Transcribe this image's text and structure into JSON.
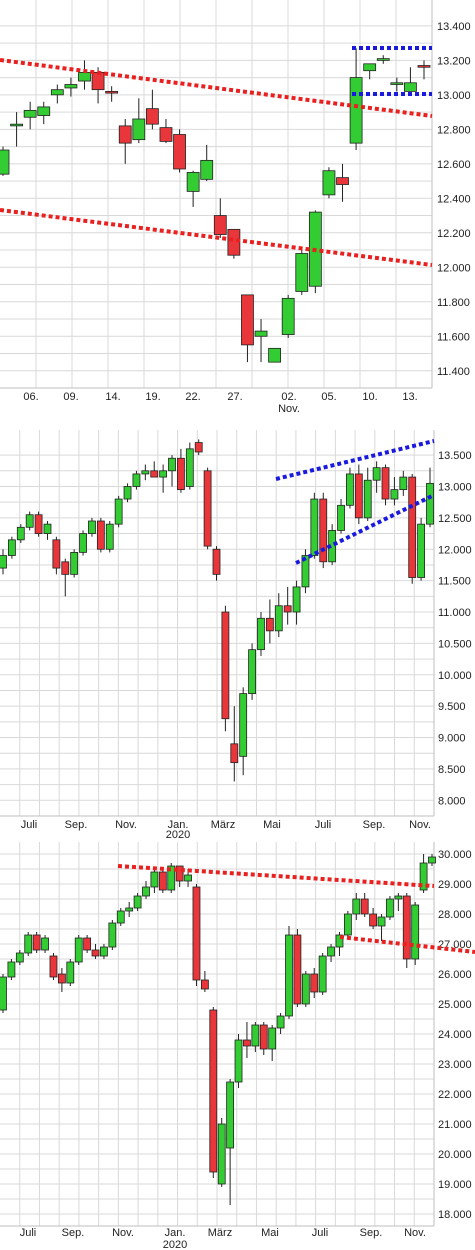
{
  "colors": {
    "up": "#33cc33",
    "down": "#e8363a",
    "grid": "#d9d9d9",
    "trend_red": "#e8201f",
    "trend_blue": "#1a1adf",
    "text": "#222222"
  },
  "chart_data": [
    {
      "type": "candlestick",
      "title": "",
      "ylim": [
        11300,
        13550
      ],
      "y_ticks": [
        "11.400",
        "11.600",
        "11.800",
        "12.000",
        "12.200",
        "12.400",
        "12.600",
        "12.800",
        "13.000",
        "13.200",
        "13.400"
      ],
      "y_tick_values": [
        11400,
        11600,
        11800,
        12000,
        12200,
        12400,
        12600,
        12800,
        13000,
        13200,
        13400
      ],
      "x_ticks": [
        "06.",
        "09.",
        "14.",
        "19.",
        "22.",
        "27.",
        "02.",
        "05.",
        "10.",
        "13."
      ],
      "x_sublabel": "Nov.",
      "candles": [
        {
          "o": 12540,
          "h": 12700,
          "l": 12530,
          "c": 12680
        },
        {
          "o": 12820,
          "h": 12900,
          "l": 12700,
          "c": 12830
        },
        {
          "o": 12870,
          "h": 12960,
          "l": 12800,
          "c": 12910
        },
        {
          "o": 12880,
          "h": 12960,
          "l": 12830,
          "c": 12930
        },
        {
          "o": 13000,
          "h": 13060,
          "l": 12950,
          "c": 13030
        },
        {
          "o": 13040,
          "h": 13100,
          "l": 12990,
          "c": 13060
        },
        {
          "o": 13080,
          "h": 13200,
          "l": 13030,
          "c": 13130
        },
        {
          "o": 13130,
          "h": 13160,
          "l": 12950,
          "c": 13030
        },
        {
          "o": 13020,
          "h": 13050,
          "l": 12960,
          "c": 13010
        },
        {
          "o": 12820,
          "h": 12860,
          "l": 12600,
          "c": 12720
        },
        {
          "o": 12740,
          "h": 12980,
          "l": 12720,
          "c": 12860
        },
        {
          "o": 12920,
          "h": 13030,
          "l": 12800,
          "c": 12830
        },
        {
          "o": 12810,
          "h": 12860,
          "l": 12720,
          "c": 12730
        },
        {
          "o": 12770,
          "h": 12800,
          "l": 12550,
          "c": 12570
        },
        {
          "o": 12440,
          "h": 12560,
          "l": 12350,
          "c": 12550
        },
        {
          "o": 12510,
          "h": 12710,
          "l": 12500,
          "c": 12620
        },
        {
          "o": 12300,
          "h": 12400,
          "l": 12170,
          "c": 12190
        },
        {
          "o": 12220,
          "h": 12220,
          "l": 12050,
          "c": 12070
        },
        {
          "o": 11840,
          "h": 11840,
          "l": 11450,
          "c": 11550
        },
        {
          "o": 11600,
          "h": 11700,
          "l": 11450,
          "c": 11630
        },
        {
          "o": 11450,
          "h": 11530,
          "l": 11450,
          "c": 11530
        },
        {
          "o": 11610,
          "h": 11840,
          "l": 11590,
          "c": 11820
        },
        {
          "o": 11860,
          "h": 12100,
          "l": 11840,
          "c": 12080
        },
        {
          "o": 11890,
          "h": 12330,
          "l": 11850,
          "c": 12320
        },
        {
          "o": 12420,
          "h": 12580,
          "l": 12400,
          "c": 12560
        },
        {
          "o": 12520,
          "h": 12600,
          "l": 12380,
          "c": 12480
        },
        {
          "o": 12720,
          "h": 13270,
          "l": 12680,
          "c": 13100
        },
        {
          "o": 13140,
          "h": 13180,
          "l": 13090,
          "c": 13180
        },
        {
          "o": 13200,
          "h": 13230,
          "l": 13180,
          "c": 13210
        },
        {
          "o": 13060,
          "h": 13100,
          "l": 13020,
          "c": 13070
        },
        {
          "o": 13020,
          "h": 13160,
          "l": 13020,
          "c": 13070
        },
        {
          "o": 13170,
          "h": 13200,
          "l": 13090,
          "c": 13160
        }
      ]
    },
    {
      "type": "candlestick",
      "title": "",
      "ylim": [
        7750,
        13900
      ],
      "y_ticks": [
        "8.000",
        "8.500",
        "9.000",
        "9.500",
        "10.000",
        "10.500",
        "11.000",
        "11.500",
        "12.000",
        "12.500",
        "13.000",
        "13.500"
      ],
      "y_tick_values": [
        8000,
        8500,
        9000,
        9500,
        10000,
        10500,
        11000,
        11500,
        12000,
        12500,
        13000,
        13500
      ],
      "x_ticks": [
        "Juli",
        "Sep.",
        "Nov.",
        "Jan.",
        "März",
        "Mai",
        "Juli",
        "Sep.",
        "Nov."
      ],
      "x_sublabel": "2020",
      "candles": [
        {
          "o": 11700,
          "h": 12000,
          "l": 11600,
          "c": 11900
        },
        {
          "o": 11900,
          "h": 12200,
          "l": 11850,
          "c": 12150
        },
        {
          "o": 12150,
          "h": 12400,
          "l": 12100,
          "c": 12350
        },
        {
          "o": 12350,
          "h": 12600,
          "l": 12300,
          "c": 12550
        },
        {
          "o": 12550,
          "h": 12600,
          "l": 12200,
          "c": 12250
        },
        {
          "o": 12250,
          "h": 12450,
          "l": 12150,
          "c": 12400
        },
        {
          "o": 12150,
          "h": 12200,
          "l": 11600,
          "c": 11700
        },
        {
          "o": 11800,
          "h": 11850,
          "l": 11250,
          "c": 11600
        },
        {
          "o": 11600,
          "h": 12000,
          "l": 11550,
          "c": 11950
        },
        {
          "o": 11950,
          "h": 12300,
          "l": 11900,
          "c": 12250
        },
        {
          "o": 12250,
          "h": 12500,
          "l": 12200,
          "c": 12450
        },
        {
          "o": 12450,
          "h": 12500,
          "l": 11950,
          "c": 12000
        },
        {
          "o": 12000,
          "h": 12450,
          "l": 11950,
          "c": 12400
        },
        {
          "o": 12400,
          "h": 12850,
          "l": 12350,
          "c": 12800
        },
        {
          "o": 12800,
          "h": 13050,
          "l": 12750,
          "c": 13000
        },
        {
          "o": 13000,
          "h": 13250,
          "l": 12950,
          "c": 13200
        },
        {
          "o": 13200,
          "h": 13350,
          "l": 13100,
          "c": 13250
        },
        {
          "o": 13250,
          "h": 13400,
          "l": 13150,
          "c": 13150
        },
        {
          "o": 13150,
          "h": 13350,
          "l": 12900,
          "c": 13250
        },
        {
          "o": 13250,
          "h": 13500,
          "l": 13000,
          "c": 13450
        },
        {
          "o": 13450,
          "h": 13600,
          "l": 12900,
          "c": 12950
        },
        {
          "o": 13000,
          "h": 13700,
          "l": 12950,
          "c": 13600
        },
        {
          "o": 13700,
          "h": 13750,
          "l": 13500,
          "c": 13550
        },
        {
          "o": 13250,
          "h": 13300,
          "l": 12000,
          "c": 12050
        },
        {
          "o": 12000,
          "h": 12050,
          "l": 11500,
          "c": 11600
        },
        {
          "o": 11000,
          "h": 11100,
          "l": 9100,
          "c": 9300
        },
        {
          "o": 8900,
          "h": 9500,
          "l": 8300,
          "c": 8600
        },
        {
          "o": 8700,
          "h": 9800,
          "l": 8400,
          "c": 9700
        },
        {
          "o": 9700,
          "h": 10500,
          "l": 9600,
          "c": 10400
        },
        {
          "o": 10400,
          "h": 11000,
          "l": 10300,
          "c": 10900
        },
        {
          "o": 10900,
          "h": 11200,
          "l": 10500,
          "c": 10700
        },
        {
          "o": 10700,
          "h": 11300,
          "l": 10600,
          "c": 11100
        },
        {
          "o": 11100,
          "h": 11400,
          "l": 10800,
          "c": 11000
        },
        {
          "o": 11000,
          "h": 11500,
          "l": 10800,
          "c": 11400
        },
        {
          "o": 11400,
          "h": 12000,
          "l": 11300,
          "c": 11900
        },
        {
          "o": 11900,
          "h": 12900,
          "l": 11850,
          "c": 12800
        },
        {
          "o": 12800,
          "h": 12900,
          "l": 11700,
          "c": 11800
        },
        {
          "o": 11800,
          "h": 12400,
          "l": 11750,
          "c": 12300
        },
        {
          "o": 12300,
          "h": 12800,
          "l": 12250,
          "c": 12700
        },
        {
          "o": 12700,
          "h": 13300,
          "l": 12650,
          "c": 13200
        },
        {
          "o": 13200,
          "h": 13350,
          "l": 12400,
          "c": 12500
        },
        {
          "o": 12500,
          "h": 13300,
          "l": 12450,
          "c": 13100
        },
        {
          "o": 13100,
          "h": 13400,
          "l": 12900,
          "c": 13300
        },
        {
          "o": 13300,
          "h": 13350,
          "l": 12700,
          "c": 12800
        },
        {
          "o": 12800,
          "h": 13150,
          "l": 12700,
          "c": 12950
        },
        {
          "o": 12950,
          "h": 13250,
          "l": 12850,
          "c": 13150
        },
        {
          "o": 13150,
          "h": 13200,
          "l": 11450,
          "c": 11550
        },
        {
          "o": 11550,
          "h": 12500,
          "l": 11500,
          "c": 12400
        },
        {
          "o": 12400,
          "h": 13300,
          "l": 12350,
          "c": 13050
        }
      ]
    },
    {
      "type": "candlestick",
      "title": "",
      "ylim": [
        17600,
        30400
      ],
      "y_ticks": [
        "18.000",
        "19.000",
        "20.000",
        "21.000",
        "22.000",
        "23.000",
        "24.000",
        "25.000",
        "26.000",
        "27.000",
        "28.000",
        "29.000",
        "30.000"
      ],
      "y_tick_values": [
        18000,
        19000,
        20000,
        21000,
        22000,
        23000,
        24000,
        25000,
        26000,
        27000,
        28000,
        29000,
        30000
      ],
      "x_ticks": [
        "Juli",
        "Sep.",
        "Nov.",
        "Jan.",
        "März",
        "Mai",
        "Juli",
        "Sep.",
        "Nov."
      ],
      "x_sublabel": "2020",
      "candles": [
        {
          "o": 24800,
          "h": 26000,
          "l": 24700,
          "c": 25900
        },
        {
          "o": 25900,
          "h": 26500,
          "l": 25800,
          "c": 26400
        },
        {
          "o": 26400,
          "h": 26800,
          "l": 26300,
          "c": 26700
        },
        {
          "o": 26700,
          "h": 27400,
          "l": 26600,
          "c": 27300
        },
        {
          "o": 27300,
          "h": 27400,
          "l": 26700,
          "c": 26800
        },
        {
          "o": 26800,
          "h": 27300,
          "l": 26700,
          "c": 27200
        },
        {
          "o": 26600,
          "h": 26700,
          "l": 25800,
          "c": 25900
        },
        {
          "o": 26000,
          "h": 26200,
          "l": 25400,
          "c": 25700
        },
        {
          "o": 25700,
          "h": 26500,
          "l": 25600,
          "c": 26400
        },
        {
          "o": 26400,
          "h": 27300,
          "l": 26300,
          "c": 27200
        },
        {
          "o": 27200,
          "h": 27300,
          "l": 26700,
          "c": 26800
        },
        {
          "o": 26800,
          "h": 27000,
          "l": 26500,
          "c": 26600
        },
        {
          "o": 26600,
          "h": 27000,
          "l": 26500,
          "c": 26900
        },
        {
          "o": 26900,
          "h": 27800,
          "l": 26800,
          "c": 27700
        },
        {
          "o": 27700,
          "h": 28200,
          "l": 27600,
          "c": 28100
        },
        {
          "o": 28100,
          "h": 28400,
          "l": 27900,
          "c": 28200
        },
        {
          "o": 28200,
          "h": 28700,
          "l": 28100,
          "c": 28600
        },
        {
          "o": 28600,
          "h": 29100,
          "l": 28500,
          "c": 28900
        },
        {
          "o": 28900,
          "h": 29500,
          "l": 28700,
          "c": 29400
        },
        {
          "o": 29400,
          "h": 29500,
          "l": 28700,
          "c": 28800
        },
        {
          "o": 28800,
          "h": 29700,
          "l": 28700,
          "c": 29600
        },
        {
          "o": 29600,
          "h": 29600,
          "l": 28900,
          "c": 29100
        },
        {
          "o": 29100,
          "h": 29500,
          "l": 28900,
          "c": 29300
        },
        {
          "o": 28900,
          "h": 29000,
          "l": 25600,
          "c": 25800
        },
        {
          "o": 25800,
          "h": 26100,
          "l": 25400,
          "c": 25500
        },
        {
          "o": 24800,
          "h": 24900,
          "l": 19200,
          "c": 19400
        },
        {
          "o": 19000,
          "h": 21200,
          "l": 18900,
          "c": 21000
        },
        {
          "o": 20200,
          "h": 22500,
          "l": 18300,
          "c": 22400
        },
        {
          "o": 22400,
          "h": 24000,
          "l": 22200,
          "c": 23800
        },
        {
          "o": 23800,
          "h": 24400,
          "l": 23200,
          "c": 23600
        },
        {
          "o": 23600,
          "h": 24400,
          "l": 23400,
          "c": 24300
        },
        {
          "o": 24300,
          "h": 24400,
          "l": 23300,
          "c": 23500
        },
        {
          "o": 23500,
          "h": 24300,
          "l": 23100,
          "c": 24200
        },
        {
          "o": 24200,
          "h": 24700,
          "l": 24000,
          "c": 24600
        },
        {
          "o": 24600,
          "h": 27600,
          "l": 24500,
          "c": 27300
        },
        {
          "o": 27300,
          "h": 27500,
          "l": 24900,
          "c": 25000
        },
        {
          "o": 25000,
          "h": 26100,
          "l": 24900,
          "c": 26000
        },
        {
          "o": 26000,
          "h": 26200,
          "l": 25200,
          "c": 25400
        },
        {
          "o": 25400,
          "h": 26700,
          "l": 25300,
          "c": 26600
        },
        {
          "o": 26600,
          "h": 27000,
          "l": 26400,
          "c": 26900
        },
        {
          "o": 26900,
          "h": 27400,
          "l": 26600,
          "c": 27300
        },
        {
          "o": 27300,
          "h": 28100,
          "l": 27200,
          "c": 28000
        },
        {
          "o": 28000,
          "h": 28700,
          "l": 27800,
          "c": 28500
        },
        {
          "o": 28500,
          "h": 28700,
          "l": 27900,
          "c": 28000
        },
        {
          "o": 28000,
          "h": 28200,
          "l": 27500,
          "c": 27600
        },
        {
          "o": 27600,
          "h": 28000,
          "l": 27100,
          "c": 27900
        },
        {
          "o": 27900,
          "h": 28600,
          "l": 27800,
          "c": 28500
        },
        {
          "o": 28500,
          "h": 28700,
          "l": 28100,
          "c": 28600
        },
        {
          "o": 28600,
          "h": 28700,
          "l": 26200,
          "c": 26500
        },
        {
          "o": 26500,
          "h": 28400,
          "l": 26300,
          "c": 28300
        },
        {
          "o": 28800,
          "h": 30000,
          "l": 28700,
          "c": 29700
        },
        {
          "o": 29700,
          "h": 30000,
          "l": 29600,
          "c": 29900
        }
      ]
    }
  ]
}
